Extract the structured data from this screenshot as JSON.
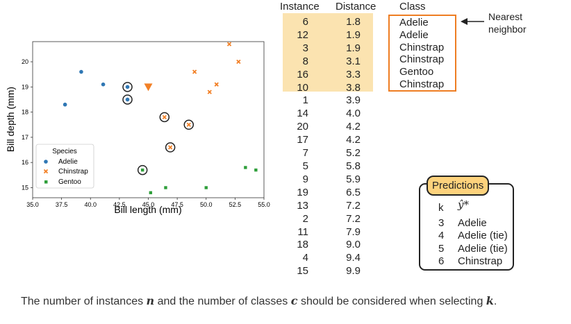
{
  "chart_data": {
    "type": "scatter",
    "xlabel": "Bill length (mm)",
    "ylabel": "Bill depth (mm)",
    "xlim": [
      35.0,
      55.0
    ],
    "ylim": [
      14.6,
      20.8
    ],
    "xticks": [
      "35.0",
      "37.5",
      "40.0",
      "42.5",
      "45.0",
      "47.5",
      "50.0",
      "52.5",
      "55.0"
    ],
    "yticks": [
      "15",
      "16",
      "17",
      "18",
      "19",
      "20"
    ],
    "legend": {
      "title": "Species",
      "placement": "lower-left"
    },
    "series": [
      {
        "name": "Adelie",
        "marker": "circle",
        "color": "#2f77b4",
        "points": [
          [
            35.9,
            16.6
          ],
          [
            37.8,
            18.3
          ],
          [
            39.2,
            19.6
          ],
          [
            41.1,
            19.1
          ],
          [
            43.2,
            19.0
          ],
          [
            43.2,
            18.5
          ]
        ]
      },
      {
        "name": "Chinstrap",
        "marker": "x",
        "color": "#f28026",
        "points": [
          [
            46.4,
            17.8
          ],
          [
            46.9,
            16.6
          ],
          [
            48.5,
            17.5
          ],
          [
            49.0,
            19.6
          ],
          [
            50.3,
            18.8
          ],
          [
            50.9,
            19.1
          ],
          [
            52.0,
            20.7
          ],
          [
            52.8,
            20.0
          ]
        ]
      },
      {
        "name": "Gentoo",
        "marker": "square",
        "color": "#2e9e3a",
        "points": [
          [
            44.5,
            15.7
          ],
          [
            45.2,
            14.8
          ],
          [
            46.5,
            15.0
          ],
          [
            50.0,
            15.0
          ],
          [
            53.4,
            15.8
          ],
          [
            54.3,
            15.7
          ]
        ]
      }
    ],
    "query": {
      "x": 45.0,
      "y": 19.0,
      "marker": "triangle-down",
      "color": "#f28026"
    },
    "circled_neighbors": [
      [
        43.2,
        19.0
      ],
      [
        43.2,
        18.5
      ],
      [
        46.4,
        17.8
      ],
      [
        48.5,
        17.5
      ],
      [
        46.9,
        16.6
      ],
      [
        44.5,
        15.7
      ]
    ]
  },
  "table": {
    "headers": {
      "instance": "Instance",
      "distance": "Distance",
      "class": "Class"
    },
    "instances": [
      "6",
      "12",
      "3",
      "8",
      "16",
      "10",
      "1",
      "14",
      "20",
      "17",
      "7",
      "5",
      "9",
      "19",
      "13",
      "2",
      "11",
      "18",
      "4",
      "15"
    ],
    "distances": [
      "1.8",
      "1.9",
      "1.9",
      "3.1",
      "3.3",
      "3.8",
      "3.9",
      "4.0",
      "4.2",
      "4.2",
      "5.2",
      "5.8",
      "5.9",
      "6.5",
      "7.2",
      "7.2",
      "7.9",
      "9.0",
      "9.4",
      "9.9"
    ],
    "classes": [
      "Adelie",
      "Adelie",
      "Chinstrap",
      "Chinstrap",
      "Gentoo",
      "Chinstrap"
    ],
    "highlight_color": "#fbe3b0"
  },
  "annotation": {
    "nearest_neighbor": "Nearest neighbor"
  },
  "predictions": {
    "title": "Predictions",
    "k_header": "k",
    "y_header": "ŷ*",
    "rows": [
      {
        "k": "3",
        "label": "Adelie"
      },
      {
        "k": "4",
        "label": "Adelie (tie)"
      },
      {
        "k": "5",
        "label": "Adelie (tie)"
      },
      {
        "k": "6",
        "label": "Chinstrap"
      }
    ]
  },
  "caption": {
    "part1": "The number of instances ",
    "n": "n",
    "part2": " and the number of classes ",
    "c": "c",
    "part3": " should be considered when selecting ",
    "k": "k",
    "part4": "."
  }
}
